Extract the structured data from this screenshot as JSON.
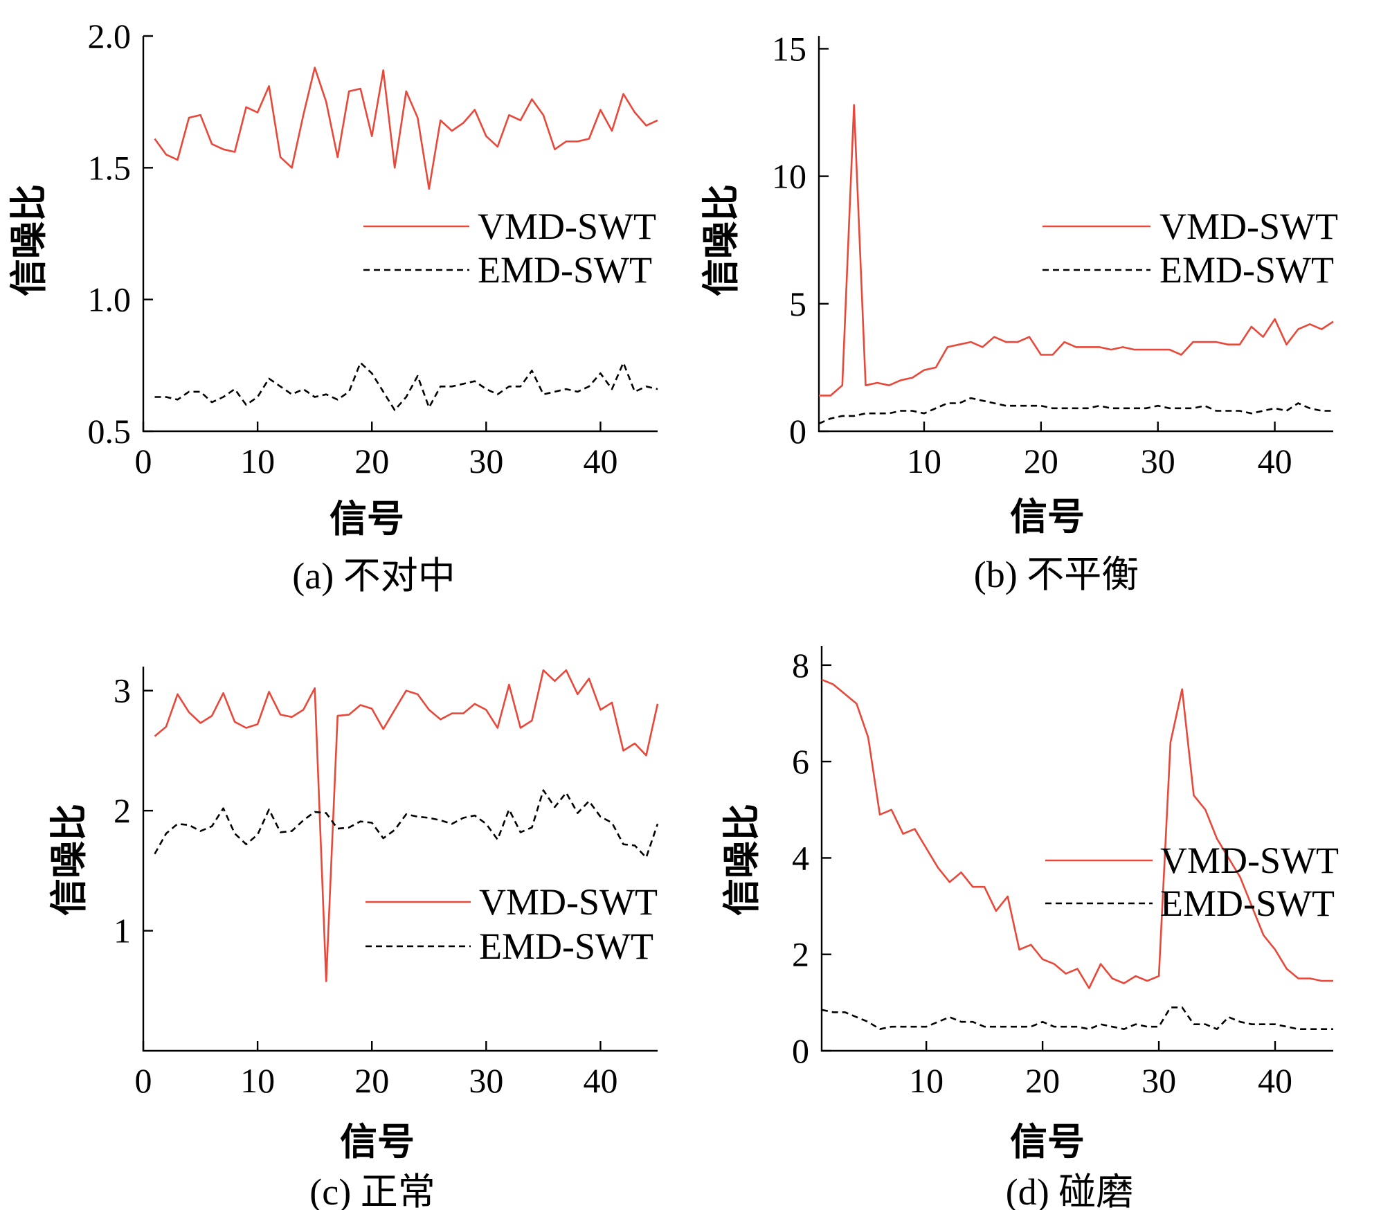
{
  "colors": {
    "vmd": "#e8483a",
    "emd": "#000000"
  },
  "chart_data": [
    {
      "type": "line",
      "caption": "(a) 不对中",
      "xlabel": "信号",
      "ylabel": "信噪比",
      "xlim": [
        0,
        45
      ],
      "ylim": [
        0.5,
        2.0
      ],
      "xticks": [
        0,
        10,
        20,
        30,
        40
      ],
      "xtick_labels": [
        "0",
        "10",
        "20",
        "30",
        "40"
      ],
      "yticks": [
        0.5,
        1.0,
        1.5,
        2.0
      ],
      "ytick_labels": [
        "0.5",
        "1.0",
        "1.5",
        "2.0"
      ],
      "legend_position": "center-right",
      "x": [
        1,
        2,
        3,
        4,
        5,
        6,
        7,
        8,
        9,
        10,
        11,
        12,
        13,
        14,
        15,
        16,
        17,
        18,
        19,
        20,
        21,
        22,
        23,
        24,
        25,
        26,
        27,
        28,
        29,
        30,
        31,
        32,
        33,
        34,
        35,
        36,
        37,
        38,
        39,
        40,
        41,
        42,
        43,
        44,
        45
      ],
      "series": [
        {
          "name": "VMD-SWT",
          "style": "solid",
          "values": [
            1.61,
            1.55,
            1.53,
            1.69,
            1.7,
            1.59,
            1.57,
            1.56,
            1.73,
            1.71,
            1.81,
            1.54,
            1.5,
            1.7,
            1.88,
            1.75,
            1.54,
            1.79,
            1.8,
            1.62,
            1.87,
            1.5,
            1.79,
            1.69,
            1.42,
            1.68,
            1.64,
            1.67,
            1.72,
            1.62,
            1.58,
            1.7,
            1.68,
            1.76,
            1.7,
            1.57,
            1.6,
            1.6,
            1.61,
            1.72,
            1.64,
            1.78,
            1.71,
            1.66,
            1.68
          ]
        },
        {
          "name": "EMD-SWT",
          "style": "dashed",
          "values": [
            0.63,
            0.63,
            0.62,
            0.65,
            0.65,
            0.61,
            0.63,
            0.66,
            0.6,
            0.63,
            0.7,
            0.67,
            0.64,
            0.66,
            0.63,
            0.64,
            0.62,
            0.65,
            0.76,
            0.72,
            0.65,
            0.58,
            0.63,
            0.71,
            0.59,
            0.67,
            0.67,
            0.68,
            0.69,
            0.66,
            0.64,
            0.67,
            0.67,
            0.73,
            0.64,
            0.65,
            0.66,
            0.65,
            0.67,
            0.72,
            0.66,
            0.76,
            0.65,
            0.67,
            0.66
          ]
        }
      ]
    },
    {
      "type": "line",
      "caption": "(b) 不平衡",
      "xlabel": "信号",
      "ylabel": "信噪比",
      "xlim": [
        1,
        45
      ],
      "ylim": [
        0,
        15.5
      ],
      "xticks": [
        10,
        20,
        30,
        40
      ],
      "xtick_labels": [
        "10",
        "20",
        "30",
        "40"
      ],
      "yticks": [
        0,
        5,
        10,
        15
      ],
      "ytick_labels": [
        "0",
        "5",
        "10",
        "15"
      ],
      "legend_position": "center-right",
      "x": [
        1,
        2,
        3,
        4,
        5,
        6,
        7,
        8,
        9,
        10,
        11,
        12,
        13,
        14,
        15,
        16,
        17,
        18,
        19,
        20,
        21,
        22,
        23,
        24,
        25,
        26,
        27,
        28,
        29,
        30,
        31,
        32,
        33,
        34,
        35,
        36,
        37,
        38,
        39,
        40,
        41,
        42,
        43,
        44,
        45
      ],
      "series": [
        {
          "name": "VMD-SWT",
          "style": "solid",
          "values": [
            1.4,
            1.4,
            1.8,
            12.8,
            1.8,
            1.9,
            1.8,
            2.0,
            2.1,
            2.4,
            2.5,
            3.3,
            3.4,
            3.5,
            3.3,
            3.7,
            3.5,
            3.5,
            3.7,
            3.0,
            3.0,
            3.5,
            3.3,
            3.3,
            3.3,
            3.2,
            3.3,
            3.2,
            3.2,
            3.2,
            3.2,
            3.0,
            3.5,
            3.5,
            3.5,
            3.4,
            3.4,
            4.1,
            3.7,
            4.4,
            3.4,
            4.0,
            4.2,
            4.0,
            4.3
          ]
        },
        {
          "name": "EMD-SWT",
          "style": "dashed",
          "values": [
            0.3,
            0.5,
            0.6,
            0.6,
            0.7,
            0.7,
            0.7,
            0.8,
            0.8,
            0.7,
            0.9,
            1.1,
            1.1,
            1.3,
            1.2,
            1.1,
            1.0,
            1.0,
            1.0,
            1.0,
            0.9,
            0.9,
            0.9,
            0.9,
            1.0,
            0.9,
            0.9,
            0.9,
            0.9,
            1.0,
            0.9,
            0.9,
            0.9,
            1.0,
            0.8,
            0.8,
            0.8,
            0.7,
            0.8,
            0.9,
            0.8,
            1.1,
            0.9,
            0.8,
            0.8
          ]
        }
      ]
    },
    {
      "type": "line",
      "caption": "(c) 正常",
      "xlabel": "信号",
      "ylabel": "信噪比",
      "xlim": [
        0,
        45
      ],
      "ylim": [
        0,
        3.2
      ],
      "xticks": [
        0,
        10,
        20,
        30,
        40
      ],
      "xtick_labels": [
        "0",
        "10",
        "20",
        "30",
        "40"
      ],
      "yticks": [
        1,
        2,
        3
      ],
      "ytick_labels": [
        "1",
        "2",
        "3"
      ],
      "legend_position": "lower-right",
      "x": [
        1,
        2,
        3,
        4,
        5,
        6,
        7,
        8,
        9,
        10,
        11,
        12,
        13,
        14,
        15,
        16,
        17,
        18,
        19,
        20,
        21,
        22,
        23,
        24,
        25,
        26,
        27,
        28,
        29,
        30,
        31,
        32,
        33,
        34,
        35,
        36,
        37,
        38,
        39,
        40,
        41,
        42,
        43,
        44,
        45
      ],
      "series": [
        {
          "name": "VMD-SWT",
          "style": "solid",
          "values": [
            2.62,
            2.7,
            2.97,
            2.82,
            2.73,
            2.79,
            2.98,
            2.74,
            2.69,
            2.72,
            2.99,
            2.8,
            2.78,
            2.84,
            3.02,
            0.58,
            2.79,
            2.8,
            2.88,
            2.85,
            2.68,
            2.84,
            3.0,
            2.97,
            2.84,
            2.76,
            2.81,
            2.81,
            2.89,
            2.84,
            2.69,
            3.05,
            2.69,
            2.75,
            3.17,
            3.08,
            3.17,
            2.97,
            3.1,
            2.84,
            2.9,
            2.5,
            2.56,
            2.46,
            2.89
          ]
        },
        {
          "name": "EMD-SWT",
          "style": "dashed",
          "values": [
            1.64,
            1.81,
            1.89,
            1.88,
            1.83,
            1.87,
            2.02,
            1.81,
            1.72,
            1.8,
            2.01,
            1.82,
            1.83,
            1.92,
            1.99,
            1.98,
            1.85,
            1.86,
            1.91,
            1.9,
            1.77,
            1.84,
            1.97,
            1.95,
            1.94,
            1.92,
            1.89,
            1.94,
            1.96,
            1.89,
            1.76,
            2.01,
            1.82,
            1.86,
            2.17,
            2.03,
            2.15,
            1.98,
            2.08,
            1.95,
            1.9,
            1.72,
            1.71,
            1.61,
            1.89
          ]
        }
      ]
    },
    {
      "type": "line",
      "caption": "(d) 碰磨",
      "xlabel": "信号",
      "ylabel": "信噪比",
      "xlim": [
        1,
        45
      ],
      "ylim": [
        0,
        8.4
      ],
      "xticks": [
        10,
        20,
        30,
        40
      ],
      "xtick_labels": [
        "10",
        "20",
        "30",
        "40"
      ],
      "yticks": [
        0,
        2,
        4,
        6,
        8
      ],
      "ytick_labels": [
        "0",
        "2",
        "4",
        "6",
        "8"
      ],
      "legend_position": "center-right",
      "x": [
        1,
        2,
        3,
        4,
        5,
        6,
        7,
        8,
        9,
        10,
        11,
        12,
        13,
        14,
        15,
        16,
        17,
        18,
        19,
        20,
        21,
        22,
        23,
        24,
        25,
        26,
        27,
        28,
        29,
        30,
        31,
        32,
        33,
        34,
        35,
        36,
        37,
        38,
        39,
        40,
        41,
        42,
        43,
        44,
        45
      ],
      "series": [
        {
          "name": "VMD-SWT",
          "style": "solid",
          "values": [
            7.7,
            7.6,
            7.4,
            7.2,
            6.5,
            4.9,
            5.0,
            4.5,
            4.6,
            4.2,
            3.8,
            3.5,
            3.7,
            3.4,
            3.4,
            2.9,
            3.2,
            2.1,
            2.2,
            1.9,
            1.8,
            1.6,
            1.7,
            1.3,
            1.8,
            1.5,
            1.4,
            1.55,
            1.45,
            1.55,
            6.4,
            7.5,
            5.3,
            5.0,
            4.4,
            4.0,
            3.6,
            3.0,
            2.4,
            2.1,
            1.7,
            1.5,
            1.5,
            1.45,
            1.45
          ]
        },
        {
          "name": "EMD-SWT",
          "style": "dashed",
          "values": [
            0.85,
            0.8,
            0.8,
            0.7,
            0.6,
            0.45,
            0.5,
            0.5,
            0.5,
            0.5,
            0.6,
            0.7,
            0.6,
            0.6,
            0.5,
            0.5,
            0.5,
            0.5,
            0.5,
            0.6,
            0.5,
            0.5,
            0.5,
            0.45,
            0.55,
            0.5,
            0.45,
            0.55,
            0.5,
            0.5,
            0.9,
            0.9,
            0.55,
            0.55,
            0.45,
            0.7,
            0.6,
            0.55,
            0.55,
            0.55,
            0.5,
            0.45,
            0.45,
            0.45,
            0.45
          ]
        }
      ]
    }
  ]
}
